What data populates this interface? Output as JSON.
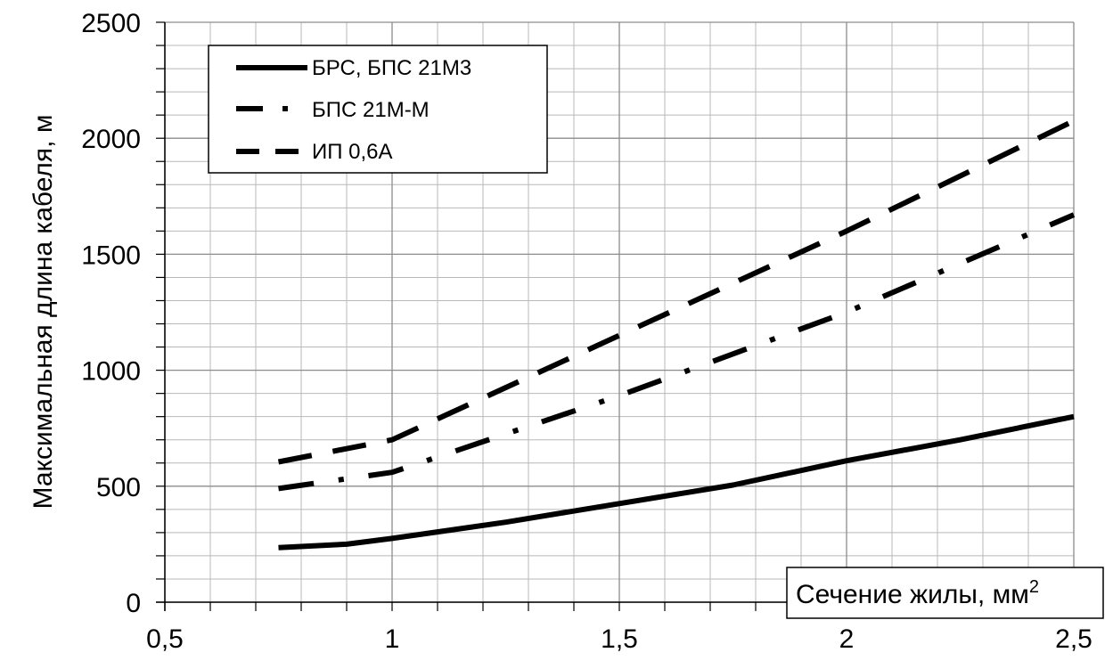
{
  "chart_data": {
    "type": "line",
    "ylabel": "Максимальная длина кабеля, м",
    "xlabel": "Сечение жилы, мм",
    "xlabel_superscript": "2",
    "xlim": [
      0.5,
      2.5
    ],
    "ylim": [
      0,
      2500
    ],
    "xticks": [
      0.5,
      1,
      1.5,
      2,
      2.5
    ],
    "xtick_labels": [
      "0,5",
      "1",
      "1,5",
      "2",
      "2,5"
    ],
    "yticks": [
      0,
      500,
      1000,
      1500,
      2000,
      2500
    ],
    "ytick_labels": [
      "0",
      "500",
      "1000",
      "1500",
      "2000",
      "2500"
    ],
    "grid": true,
    "legend_position": "top-left",
    "series": [
      {
        "name": "БРС, БПС 21М3",
        "style": "solid",
        "x": [
          0.75,
          0.9,
          1.0,
          1.25,
          1.5,
          1.75,
          2.0,
          2.25,
          2.5
        ],
        "y": [
          235,
          250,
          275,
          345,
          425,
          505,
          610,
          700,
          800
        ]
      },
      {
        "name": "БПС 21М-М",
        "style": "dash-dot",
        "x": [
          0.75,
          1.0,
          1.5,
          2.0,
          2.5
        ],
        "y": [
          490,
          560,
          890,
          1250,
          1670
        ]
      },
      {
        "name": "ИП 0,6А",
        "style": "dashed",
        "x": [
          0.75,
          1.0,
          1.5,
          2.0,
          2.5
        ],
        "y": [
          605,
          700,
          1150,
          1600,
          2075
        ]
      }
    ]
  }
}
